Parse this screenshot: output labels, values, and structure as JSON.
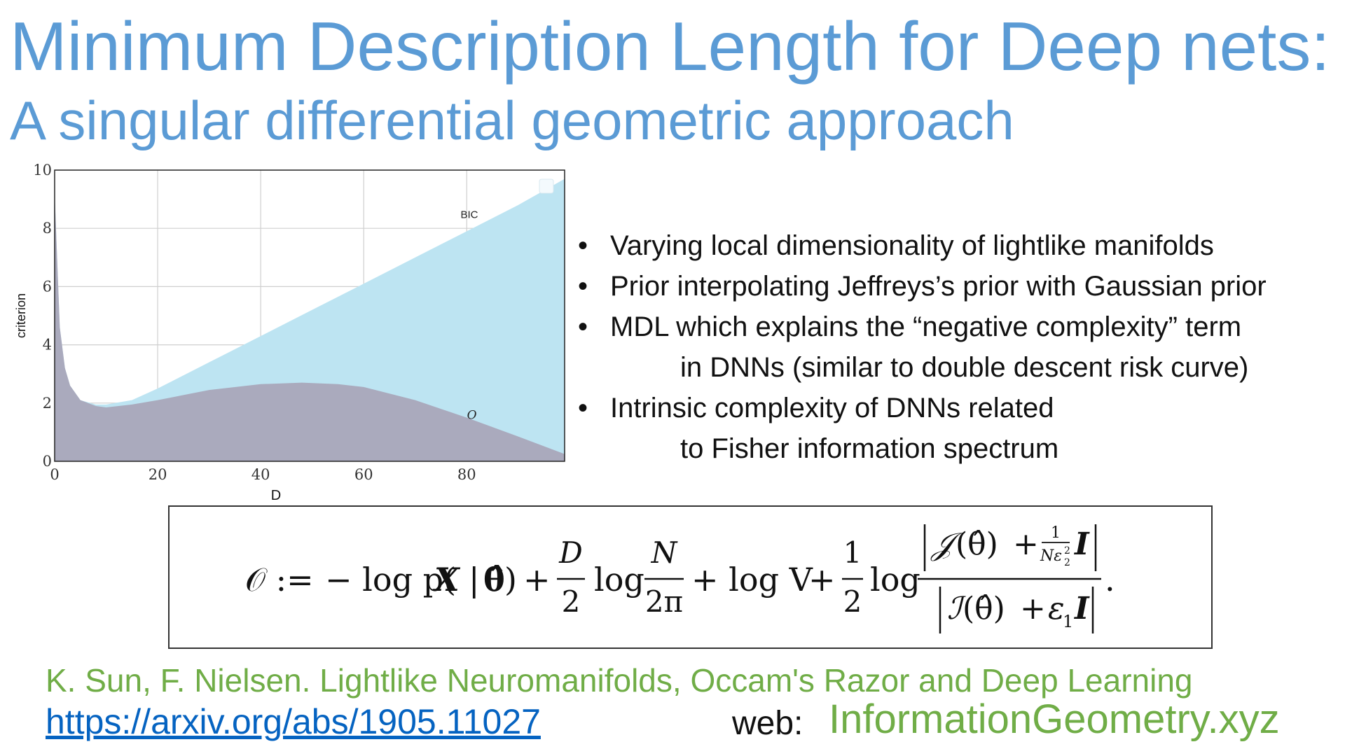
{
  "slide": {
    "title": "Minimum Description Length for Deep nets:",
    "subtitle": "A singular differential geometric approach"
  },
  "chart_data": {
    "type": "area",
    "title": "",
    "xlabel": "D",
    "ylabel": "criterion",
    "xlim": [
      0,
      99
    ],
    "ylim": [
      0,
      10
    ],
    "xticks": [
      "0",
      "20",
      "40",
      "60",
      "80"
    ],
    "yticks": [
      "0",
      "2",
      "4",
      "6",
      "8",
      "10"
    ],
    "grid": true,
    "series": [
      {
        "name": "BIC",
        "color": "#bde4f2",
        "x": [
          0,
          1,
          2,
          3,
          5,
          8,
          10,
          15,
          20,
          30,
          40,
          50,
          60,
          70,
          80,
          90,
          99
        ],
        "y": [
          9.2,
          4.6,
          3.2,
          2.6,
          2.1,
          1.95,
          1.95,
          2.1,
          2.5,
          3.4,
          4.3,
          5.2,
          6.1,
          7.0,
          7.9,
          8.8,
          9.7
        ]
      },
      {
        "name": "O",
        "color": "#aaaabd",
        "x": [
          0,
          1,
          2,
          3,
          5,
          8,
          10,
          15,
          20,
          30,
          40,
          48,
          55,
          60,
          70,
          80,
          90,
          99
        ],
        "y": [
          9.2,
          4.6,
          3.2,
          2.6,
          2.1,
          1.9,
          1.85,
          1.95,
          2.1,
          2.45,
          2.65,
          2.7,
          2.65,
          2.55,
          2.1,
          1.5,
          0.85,
          0.25
        ]
      }
    ]
  },
  "bullets": [
    {
      "symbol": "•",
      "text": "Varying local dimensionality of lightlike manifolds"
    },
    {
      "symbol": "•",
      "text": "Prior interpolating  Jeffreys’s prior with Gaussian prior"
    },
    {
      "symbol": "•",
      "text": "MDL which explains the “negative complexity” term",
      "continuation": "in DNNs (similar to double descent risk curve)"
    },
    {
      "symbol": "•",
      "text": " Intrinsic complexity of DNNs related",
      "continuation": "to Fisher information spectrum"
    }
  ],
  "formula": {
    "lhs": "𝒪 :=",
    "term1": "− log p(",
    "X": "X",
    "bar": "|",
    "theta_hat": "θ̂",
    "rparen": ")",
    "plus": "+",
    "D": "D",
    "two": "2",
    "log": "log",
    "N": "N",
    "two_pi": "2π",
    "log_V": "+ log V",
    "one": "1",
    "J": "𝒥",
    "I_script": "ℐ",
    "theta_paren": "(θ̂)",
    "I_bold": "I",
    "N_eps": "Nε",
    "sub2": "2",
    "sup2": "2",
    "eps1": "ε",
    "sub1": "1",
    "period": "."
  },
  "reference": "K. Sun, F. Nielsen. Lightlike Neuromanifolds, Occam's Razor and Deep Learning",
  "link": "https://arxiv.org/abs/1905.11027",
  "web_label": "web:",
  "web_site": "InformationGeometry.xyz"
}
